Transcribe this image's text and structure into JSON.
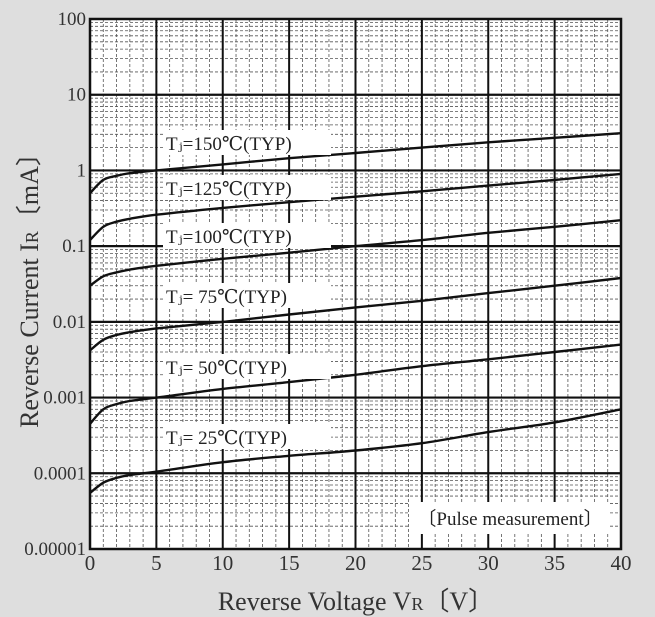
{
  "chart_data": {
    "type": "line",
    "title": "",
    "xlabel": "Reverse Voltage V",
    "xlabel_sub": "R",
    "xlabel_unit": "〔V〕",
    "ylabel": "Reverse Current I",
    "ylabel_sub": "R",
    "ylabel_unit": "〔mA〕",
    "x_scale": "linear",
    "y_scale": "log",
    "xlim": [
      0,
      40
    ],
    "ylim": [
      1e-05,
      100
    ],
    "x_ticks": [
      0,
      5,
      10,
      15,
      20,
      25,
      30,
      35,
      40
    ],
    "x_tick_labels": [
      "0",
      "5",
      "10",
      "15",
      "20",
      "25",
      "30",
      "35",
      "40"
    ],
    "y_ticks": [
      1e-05,
      0.0001,
      0.001,
      0.01,
      0.1,
      1,
      10,
      100
    ],
    "y_tick_labels": [
      "0.00001",
      "0.0001",
      "0.001",
      "0.01",
      "0.1",
      "1",
      "10",
      "100"
    ],
    "grid": true,
    "note": "〔Pulse measurement〕",
    "series": [
      {
        "name": "Tⱼ=150℃(TYP)",
        "x": [
          0,
          1,
          2,
          3,
          5,
          10,
          15,
          20,
          25,
          30,
          35,
          40
        ],
        "values": [
          0.5,
          0.75,
          0.85,
          0.92,
          1.0,
          1.2,
          1.45,
          1.7,
          2.0,
          2.35,
          2.7,
          3.1
        ]
      },
      {
        "name": "Tⱼ=125℃(TYP)",
        "x": [
          0,
          1,
          2,
          3,
          5,
          10,
          15,
          20,
          25,
          30,
          35,
          40
        ],
        "values": [
          0.12,
          0.18,
          0.21,
          0.23,
          0.26,
          0.32,
          0.38,
          0.45,
          0.53,
          0.63,
          0.75,
          0.9
        ]
      },
      {
        "name": "Tⱼ=100℃(TYP)",
        "x": [
          0,
          1,
          2,
          3,
          5,
          10,
          15,
          20,
          25,
          30,
          35,
          40
        ],
        "values": [
          0.03,
          0.04,
          0.045,
          0.049,
          0.055,
          0.068,
          0.082,
          0.1,
          0.12,
          0.15,
          0.18,
          0.22
        ]
      },
      {
        "name": "Tⱼ= 75℃(TYP)",
        "x": [
          0,
          1,
          2,
          3,
          5,
          10,
          15,
          20,
          25,
          30,
          35,
          40
        ],
        "values": [
          0.0042,
          0.0058,
          0.0067,
          0.0073,
          0.0082,
          0.01,
          0.0125,
          0.0155,
          0.019,
          0.024,
          0.03,
          0.038
        ]
      },
      {
        "name": "Tⱼ= 50℃(TYP)",
        "x": [
          0,
          1,
          2,
          3,
          5,
          10,
          15,
          20,
          25,
          30,
          35,
          40
        ],
        "values": [
          0.00045,
          0.0007,
          0.00082,
          0.0009,
          0.001,
          0.0013,
          0.0016,
          0.002,
          0.0026,
          0.0032,
          0.004,
          0.005
        ]
      },
      {
        "name": "Tⱼ= 25℃(TYP)",
        "x": [
          0,
          1,
          2,
          3,
          5,
          10,
          15,
          20,
          25,
          30,
          35,
          40
        ],
        "values": [
          5.5e-05,
          7.5e-05,
          8.7e-05,
          9.5e-05,
          0.000105,
          0.00014,
          0.00017,
          0.0002,
          0.00025,
          0.00035,
          0.00047,
          0.0007
        ]
      }
    ],
    "colors": {
      "background": "#dedede",
      "plot_bg": "#ffffff",
      "line": "#111111",
      "text": "#333333"
    }
  }
}
